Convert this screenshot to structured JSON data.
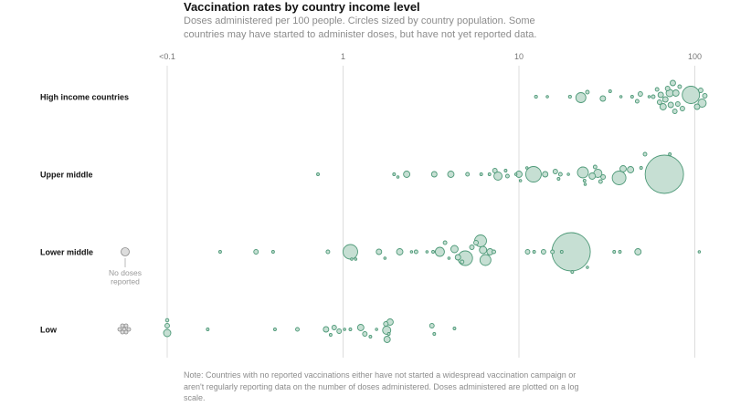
{
  "title": "Vaccination rates by country income level",
  "subtitle": "Doses administered per 100 people. Circles sized by country population. Some countries may have started to administer doses, but have not yet reported data.",
  "note": "Note: Countries with no reported vaccinations either have not started a widespread vaccination campaign or aren't regularly reporting data on the number of doses administered. Doses administered are plotted on a log scale.",
  "colors": {
    "circle_fill": "#c6dfd3",
    "circle_stroke": "#4f9a79",
    "nodose_fill": "#dddddd",
    "nodose_stroke": "#8a8a8a",
    "grid": "#dddddd"
  },
  "chart_data": {
    "type": "scatter",
    "title": "Vaccination rates by country income level",
    "x_scale": "log",
    "xlim": [
      0.1,
      100
    ],
    "x_ticks": [
      {
        "value": 0.1,
        "label": "<0.1"
      },
      {
        "value": 1,
        "label": "1"
      },
      {
        "value": 10,
        "label": "10"
      },
      {
        "value": 100,
        "label": "100"
      }
    ],
    "no_doses_label": [
      "No doses",
      "reported"
    ],
    "grid": true,
    "categories": [
      "High income countries",
      "Upper middle",
      "Lower middle",
      "Low"
    ],
    "series": [
      {
        "name": "High income countries",
        "points": [
          {
            "x": 12.5,
            "r": 1.6,
            "dy": 0
          },
          {
            "x": 14.5,
            "r": 1.3,
            "dy": 0
          },
          {
            "x": 19.5,
            "r": 1.6,
            "dy": 0
          },
          {
            "x": 22.5,
            "r": 5.5,
            "dy": 1
          },
          {
            "x": 24.5,
            "r": 2,
            "dy": -5
          },
          {
            "x": 30,
            "r": 3,
            "dy": 2
          },
          {
            "x": 33,
            "r": 1.5,
            "dy": -6
          },
          {
            "x": 38,
            "r": 1.3,
            "dy": 0
          },
          {
            "x": 44,
            "r": 1.5,
            "dy": 0
          },
          {
            "x": 47,
            "r": 2,
            "dy": 5
          },
          {
            "x": 49,
            "r": 2.5,
            "dy": -3
          },
          {
            "x": 55,
            "r": 1.3,
            "dy": 0
          },
          {
            "x": 58,
            "r": 2,
            "dy": 0
          },
          {
            "x": 61,
            "r": 2,
            "dy": -8
          },
          {
            "x": 63,
            "r": 2.5,
            "dy": 6
          },
          {
            "x": 64,
            "r": 3,
            "dy": -2
          },
          {
            "x": 66,
            "r": 3.5,
            "dy": 11
          },
          {
            "x": 68,
            "r": 3,
            "dy": 3
          },
          {
            "x": 70,
            "r": 2.5,
            "dy": -9
          },
          {
            "x": 72,
            "r": 4,
            "dy": -4
          },
          {
            "x": 73,
            "r": 3,
            "dy": 9
          },
          {
            "x": 75,
            "r": 3,
            "dy": -15
          },
          {
            "x": 77,
            "r": 2.5,
            "dy": 16
          },
          {
            "x": 78,
            "r": 3.5,
            "dy": -4
          },
          {
            "x": 80,
            "r": 2.5,
            "dy": 8
          },
          {
            "x": 82,
            "r": 2,
            "dy": -11
          },
          {
            "x": 85,
            "r": 2.5,
            "dy": 13
          },
          {
            "x": 95,
            "r": 9.5,
            "dy": -2
          },
          {
            "x": 103,
            "r": 3,
            "dy": 11
          },
          {
            "x": 108,
            "r": 2.5,
            "dy": -7
          },
          {
            "x": 110,
            "r": 4.5,
            "dy": 7
          },
          {
            "x": 114,
            "r": 2.5,
            "dy": -1
          }
        ]
      },
      {
        "name": "Upper middle",
        "points": [
          {
            "x": 0.72,
            "r": 1.5,
            "dy": 0
          },
          {
            "x": 1.95,
            "r": 1.5,
            "dy": 0
          },
          {
            "x": 2.05,
            "r": 1.3,
            "dy": 3
          },
          {
            "x": 2.3,
            "r": 3.5,
            "dy": 0
          },
          {
            "x": 3.3,
            "r": 3,
            "dy": 0
          },
          {
            "x": 4.1,
            "r": 3.5,
            "dy": 0
          },
          {
            "x": 5.1,
            "r": 2,
            "dy": 0
          },
          {
            "x": 6.1,
            "r": 1.5,
            "dy": 0
          },
          {
            "x": 6.8,
            "r": 1.5,
            "dy": 0
          },
          {
            "x": 7.3,
            "r": 2.5,
            "dy": -4
          },
          {
            "x": 7.6,
            "r": 4.5,
            "dy": 2
          },
          {
            "x": 8.4,
            "r": 1.5,
            "dy": -4
          },
          {
            "x": 8.6,
            "r": 2,
            "dy": 2
          },
          {
            "x": 9.6,
            "r": 1.3,
            "dy": 0
          },
          {
            "x": 10,
            "r": 3.5,
            "dy": 0
          },
          {
            "x": 10.2,
            "r": 1.3,
            "dy": 7
          },
          {
            "x": 11.1,
            "r": 1.3,
            "dy": -7
          },
          {
            "x": 12.1,
            "r": 8.5,
            "dy": 0
          },
          {
            "x": 14.1,
            "r": 3,
            "dy": 0
          },
          {
            "x": 16.1,
            "r": 2.5,
            "dy": -3
          },
          {
            "x": 16.8,
            "r": 1.5,
            "dy": 5
          },
          {
            "x": 17.2,
            "r": 2,
            "dy": 0
          },
          {
            "x": 19.1,
            "r": 1.3,
            "dy": 0
          },
          {
            "x": 23.1,
            "r": 6,
            "dy": -2
          },
          {
            "x": 23.6,
            "r": 1.5,
            "dy": 7
          },
          {
            "x": 23.8,
            "r": 1.3,
            "dy": 11
          },
          {
            "x": 26.1,
            "r": 3.5,
            "dy": 2
          },
          {
            "x": 27.1,
            "r": 2,
            "dy": -8
          },
          {
            "x": 28.1,
            "r": 4.5,
            "dy": -1
          },
          {
            "x": 29.1,
            "r": 2,
            "dy": 8
          },
          {
            "x": 30.1,
            "r": 2.5,
            "dy": 3
          },
          {
            "x": 37.1,
            "r": 7.5,
            "dy": 4
          },
          {
            "x": 39.1,
            "r": 3.5,
            "dy": -6
          },
          {
            "x": 43.1,
            "r": 3.5,
            "dy": -5
          },
          {
            "x": 49.5,
            "r": 1.5,
            "dy": -7
          },
          {
            "x": 52.1,
            "r": 2,
            "dy": -22
          },
          {
            "x": 67.1,
            "r": 21,
            "dy": 0
          },
          {
            "x": 72.1,
            "r": 1.5,
            "dy": -22
          }
        ]
      },
      {
        "name": "Lower middle",
        "points": [
          {
            "x": 0.2,
            "r": 1.5,
            "dy": 0
          },
          {
            "x": 0.32,
            "r": 2.5,
            "dy": 0
          },
          {
            "x": 0.4,
            "r": 1.5,
            "dy": 0
          },
          {
            "x": 0.82,
            "r": 2,
            "dy": 0
          },
          {
            "x": 1.1,
            "r": 8,
            "dy": 0
          },
          {
            "x": 1.12,
            "r": 1.3,
            "dy": 8
          },
          {
            "x": 1.18,
            "r": 1.3,
            "dy": 8
          },
          {
            "x": 1.6,
            "r": 3,
            "dy": 0
          },
          {
            "x": 1.73,
            "r": 1.3,
            "dy": 7
          },
          {
            "x": 2.1,
            "r": 3.5,
            "dy": 0
          },
          {
            "x": 2.45,
            "r": 1.3,
            "dy": 0
          },
          {
            "x": 2.6,
            "r": 2,
            "dy": 0
          },
          {
            "x": 3,
            "r": 1.3,
            "dy": 0
          },
          {
            "x": 3.25,
            "r": 1.5,
            "dy": 0
          },
          {
            "x": 3.55,
            "r": 5,
            "dy": 0
          },
          {
            "x": 3.8,
            "r": 2,
            "dy": -10
          },
          {
            "x": 4,
            "r": 1.3,
            "dy": 7
          },
          {
            "x": 4.3,
            "r": 4,
            "dy": -3
          },
          {
            "x": 4.5,
            "r": 3,
            "dy": 6
          },
          {
            "x": 4.75,
            "r": 2,
            "dy": 11
          },
          {
            "x": 4.95,
            "r": 8,
            "dy": 7
          },
          {
            "x": 5.4,
            "r": 2.5,
            "dy": -5
          },
          {
            "x": 5.7,
            "r": 2.5,
            "dy": -10
          },
          {
            "x": 6.05,
            "r": 6.5,
            "dy": -12
          },
          {
            "x": 6.25,
            "r": 4,
            "dy": -2
          },
          {
            "x": 6.45,
            "r": 6,
            "dy": 9
          },
          {
            "x": 6.85,
            "r": 3.5,
            "dy": 0
          },
          {
            "x": 7.2,
            "r": 2,
            "dy": 0
          },
          {
            "x": 11.2,
            "r": 2.5,
            "dy": 0
          },
          {
            "x": 12.2,
            "r": 1.5,
            "dy": 0
          },
          {
            "x": 13.8,
            "r": 2.5,
            "dy": 0
          },
          {
            "x": 15.5,
            "r": 2,
            "dy": 0
          },
          {
            "x": 17.5,
            "r": 1.5,
            "dy": 0
          },
          {
            "x": 19.8,
            "r": 21,
            "dy": 0
          },
          {
            "x": 20.1,
            "r": 1.5,
            "dy": 22
          },
          {
            "x": 24.5,
            "r": 1.3,
            "dy": 17
          },
          {
            "x": 34.8,
            "r": 1.5,
            "dy": 0
          },
          {
            "x": 37.5,
            "r": 1.5,
            "dy": 0
          },
          {
            "x": 47.5,
            "r": 3.5,
            "dy": 0
          },
          {
            "x": 106,
            "r": 1.3,
            "dy": 0
          }
        ]
      },
      {
        "name": "Low",
        "points": [
          {
            "x": 0.1,
            "r": 1.8,
            "dy": -10
          },
          {
            "x": 0.1,
            "r": 2.5,
            "dy": -4
          },
          {
            "x": 0.1,
            "r": 4,
            "dy": 4
          },
          {
            "x": 0.17,
            "r": 1.5,
            "dy": 0
          },
          {
            "x": 0.41,
            "r": 1.5,
            "dy": 0
          },
          {
            "x": 0.55,
            "r": 2,
            "dy": 0
          },
          {
            "x": 0.8,
            "r": 3,
            "dy": 0
          },
          {
            "x": 0.85,
            "r": 1.5,
            "dy": 6
          },
          {
            "x": 0.89,
            "r": 2.5,
            "dy": -2
          },
          {
            "x": 0.95,
            "r": 2.5,
            "dy": 2
          },
          {
            "x": 1.02,
            "r": 1.3,
            "dy": 0
          },
          {
            "x": 1.1,
            "r": 1.5,
            "dy": 0
          },
          {
            "x": 1.26,
            "r": 3.5,
            "dy": -2
          },
          {
            "x": 1.33,
            "r": 2.5,
            "dy": 5
          },
          {
            "x": 1.43,
            "r": 1.5,
            "dy": 8
          },
          {
            "x": 1.55,
            "r": 1.3,
            "dy": 0
          },
          {
            "x": 1.75,
            "r": 2.5,
            "dy": -6
          },
          {
            "x": 1.77,
            "r": 4.5,
            "dy": 1
          },
          {
            "x": 1.82,
            "r": 1.5,
            "dy": 5
          },
          {
            "x": 1.85,
            "r": 3.5,
            "dy": -8
          },
          {
            "x": 1.78,
            "r": 3.5,
            "dy": 11
          },
          {
            "x": 3.2,
            "r": 2.5,
            "dy": -4
          },
          {
            "x": 3.3,
            "r": 1.5,
            "dy": 5
          },
          {
            "x": 4.3,
            "r": 1.5,
            "dy": -1
          }
        ]
      }
    ],
    "no_doses": [
      {
        "row": 2,
        "points": [
          {
            "r": 4.5,
            "dx": 0,
            "dy": 0
          }
        ]
      },
      {
        "row": 3,
        "points": [
          {
            "r": 2,
            "dx": -3,
            "dy": -4
          },
          {
            "r": 2,
            "dx": 1,
            "dy": -4
          },
          {
            "r": 2,
            "dx": -6,
            "dy": 0
          },
          {
            "r": 2,
            "dx": 4,
            "dy": 0
          },
          {
            "r": 2,
            "dx": -1,
            "dy": 0
          },
          {
            "r": 2,
            "dx": -3,
            "dy": 3
          },
          {
            "r": 2,
            "dx": 1,
            "dy": 3
          }
        ]
      }
    ]
  }
}
